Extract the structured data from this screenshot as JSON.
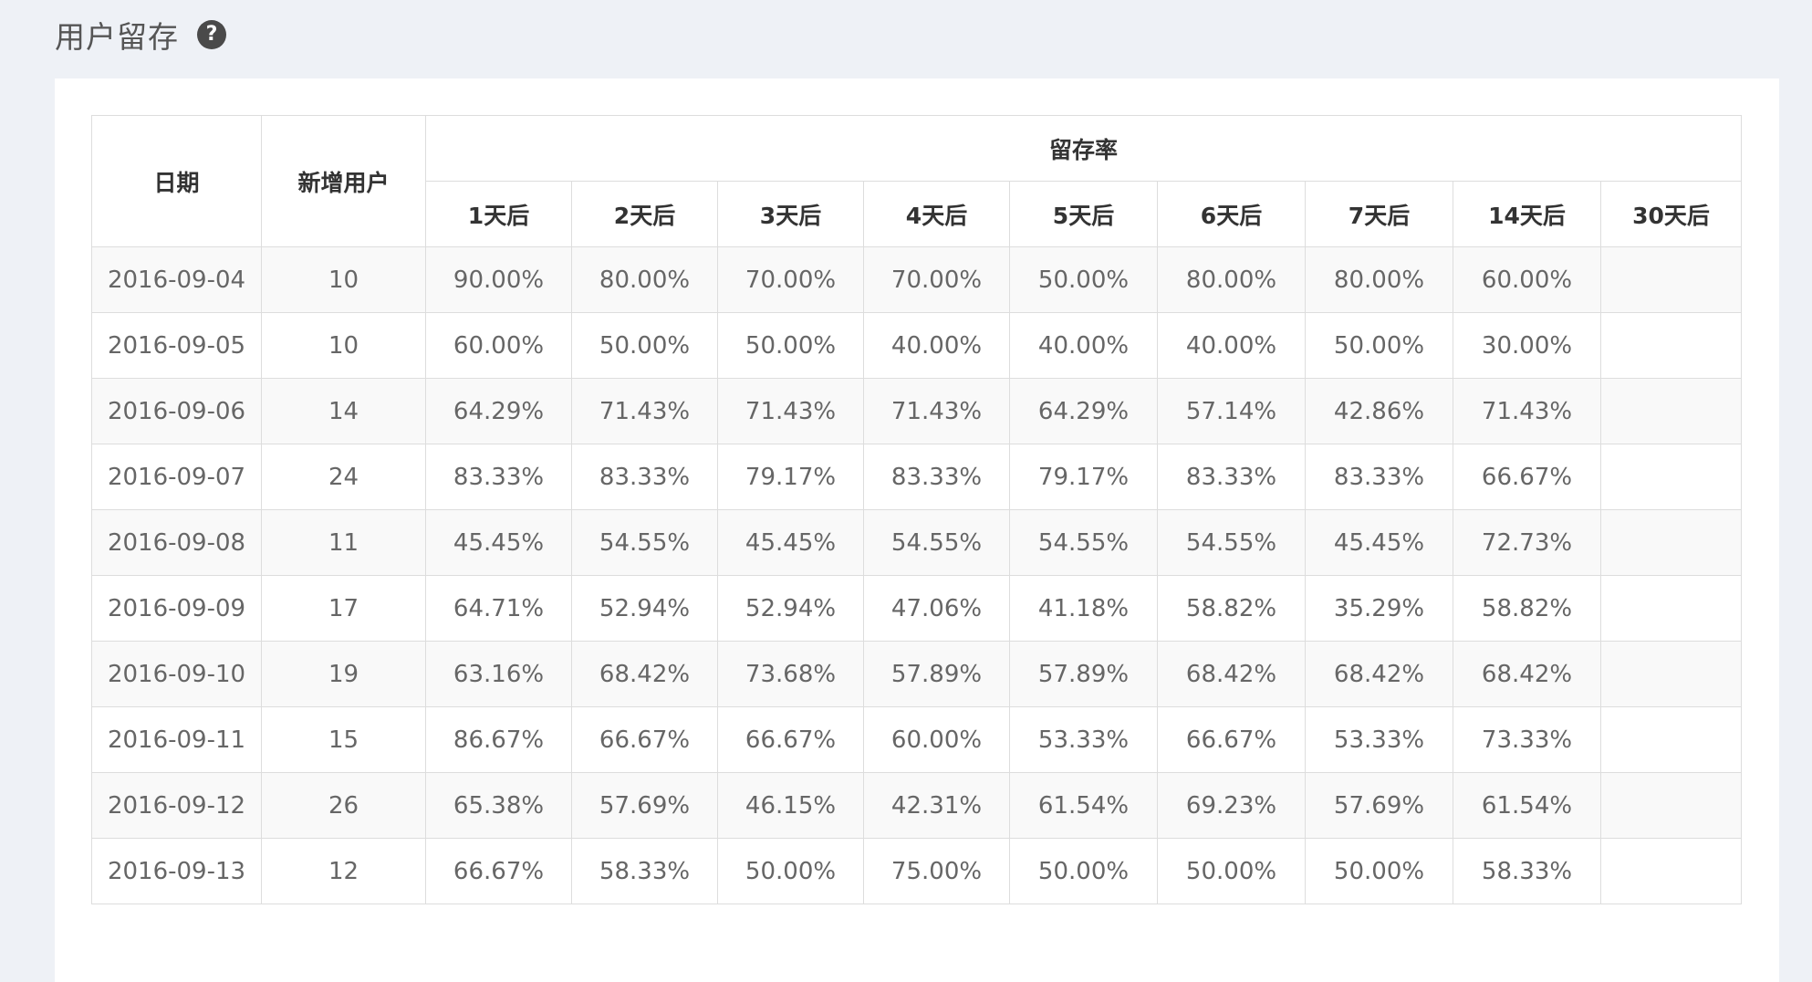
{
  "page": {
    "title": "用户留存",
    "help_icon": "question-circle-icon"
  },
  "table": {
    "headers": {
      "date": "日期",
      "new_users": "新增用户",
      "retention_group": "留存率",
      "retention_days": [
        "1天后",
        "2天后",
        "3天后",
        "4天后",
        "5天后",
        "6天后",
        "7天后",
        "14天后",
        "30天后"
      ]
    },
    "rows": [
      {
        "date": "2016-09-04",
        "new_users": "10",
        "rates": [
          "90.00%",
          "80.00%",
          "70.00%",
          "70.00%",
          "50.00%",
          "80.00%",
          "80.00%",
          "60.00%",
          ""
        ]
      },
      {
        "date": "2016-09-05",
        "new_users": "10",
        "rates": [
          "60.00%",
          "50.00%",
          "50.00%",
          "40.00%",
          "40.00%",
          "40.00%",
          "50.00%",
          "30.00%",
          ""
        ]
      },
      {
        "date": "2016-09-06",
        "new_users": "14",
        "rates": [
          "64.29%",
          "71.43%",
          "71.43%",
          "71.43%",
          "64.29%",
          "57.14%",
          "42.86%",
          "71.43%",
          ""
        ]
      },
      {
        "date": "2016-09-07",
        "new_users": "24",
        "rates": [
          "83.33%",
          "83.33%",
          "79.17%",
          "83.33%",
          "79.17%",
          "83.33%",
          "83.33%",
          "66.67%",
          ""
        ]
      },
      {
        "date": "2016-09-08",
        "new_users": "11",
        "rates": [
          "45.45%",
          "54.55%",
          "45.45%",
          "54.55%",
          "54.55%",
          "54.55%",
          "45.45%",
          "72.73%",
          ""
        ]
      },
      {
        "date": "2016-09-09",
        "new_users": "17",
        "rates": [
          "64.71%",
          "52.94%",
          "52.94%",
          "47.06%",
          "41.18%",
          "58.82%",
          "35.29%",
          "58.82%",
          ""
        ]
      },
      {
        "date": "2016-09-10",
        "new_users": "19",
        "rates": [
          "63.16%",
          "68.42%",
          "73.68%",
          "57.89%",
          "57.89%",
          "68.42%",
          "68.42%",
          "68.42%",
          ""
        ]
      },
      {
        "date": "2016-09-11",
        "new_users": "15",
        "rates": [
          "86.67%",
          "66.67%",
          "66.67%",
          "60.00%",
          "53.33%",
          "66.67%",
          "53.33%",
          "73.33%",
          ""
        ]
      },
      {
        "date": "2016-09-12",
        "new_users": "26",
        "rates": [
          "65.38%",
          "57.69%",
          "46.15%",
          "42.31%",
          "61.54%",
          "69.23%",
          "57.69%",
          "61.54%",
          ""
        ]
      },
      {
        "date": "2016-09-13",
        "new_users": "12",
        "rates": [
          "66.67%",
          "58.33%",
          "50.00%",
          "75.00%",
          "50.00%",
          "50.00%",
          "50.00%",
          "58.33%",
          ""
        ]
      }
    ]
  }
}
